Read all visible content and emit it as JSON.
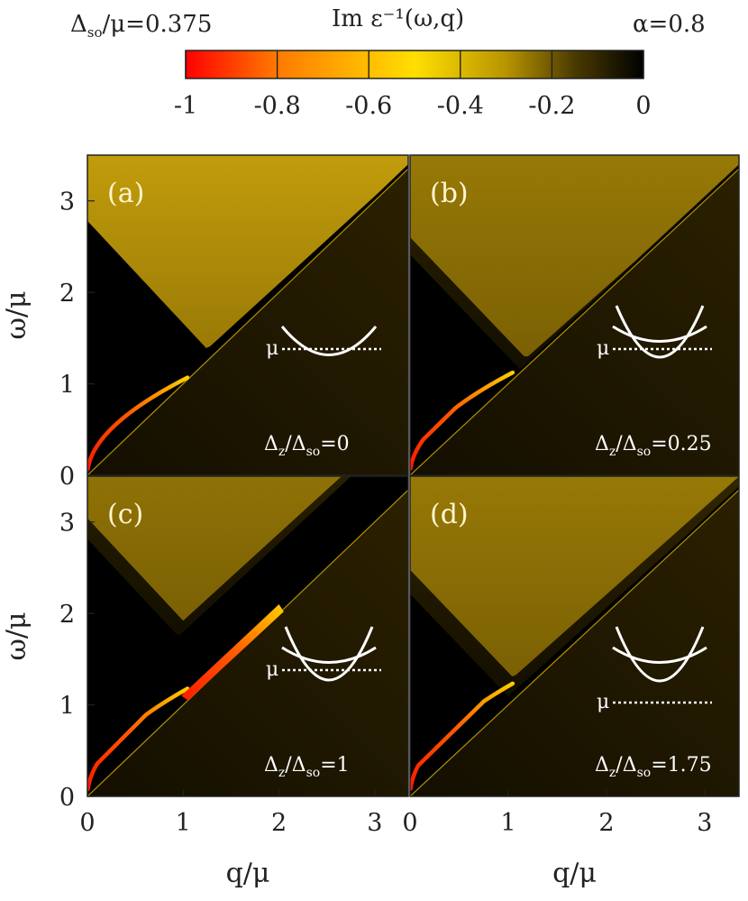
{
  "chart_data": {
    "type": "heatmap",
    "title": "Im ε⁻¹(ω,q)",
    "left_param": {
      "symbol": "Δ",
      "sub": "so",
      "rest": "/μ=0.375"
    },
    "right_param": "α=0.8",
    "colorbar": {
      "ticks": [
        "-1",
        "-0.8",
        "-0.6",
        "-0.4",
        "-0.2",
        "0"
      ],
      "range": [
        -1,
        0
      ],
      "stops": [
        {
          "v": -1.0,
          "color": "#ff0000"
        },
        {
          "v": -0.8,
          "color": "#ff7a00"
        },
        {
          "v": -0.5,
          "color": "#ffdf00"
        },
        {
          "v": -0.3,
          "color": "#b89400"
        },
        {
          "v": -0.15,
          "color": "#4a3a00"
        },
        {
          "v": 0.0,
          "color": "#000000"
        }
      ]
    },
    "xlabel": "q/μ",
    "ylabel": "ω/μ",
    "xlim": [
      0,
      3.35
    ],
    "ylim": [
      0,
      3.5
    ],
    "xticks": [
      "0",
      "1",
      "2",
      "3"
    ],
    "yticks": [
      "0",
      "1",
      "2",
      "3"
    ],
    "panels": [
      {
        "id": "a",
        "label": "(a)",
        "ratio_num": "Δ",
        "ratio_num_sub": "z",
        "ratio_den": "/Δ",
        "ratio_den_sub": "so",
        "ratio_val": "=0",
        "mu": "μ",
        "zeeman": 0.0
      },
      {
        "id": "b",
        "label": "(b)",
        "ratio_num": "Δ",
        "ratio_num_sub": "z",
        "ratio_den": "/Δ",
        "ratio_den_sub": "so",
        "ratio_val": "=0.25",
        "mu": "μ",
        "zeeman": 0.25
      },
      {
        "id": "c",
        "label": "(c)",
        "ratio_num": "Δ",
        "ratio_num_sub": "z",
        "ratio_den": "/Δ",
        "ratio_den_sub": "so",
        "ratio_val": "=1",
        "mu": "μ",
        "zeeman": 1.0
      },
      {
        "id": "d",
        "label": "(d)",
        "ratio_num": "Δ",
        "ratio_num_sub": "z",
        "ratio_den": "/Δ",
        "ratio_den_sub": "so",
        "ratio_val": "=1.75",
        "mu": "μ",
        "zeeman": 1.75
      }
    ]
  }
}
